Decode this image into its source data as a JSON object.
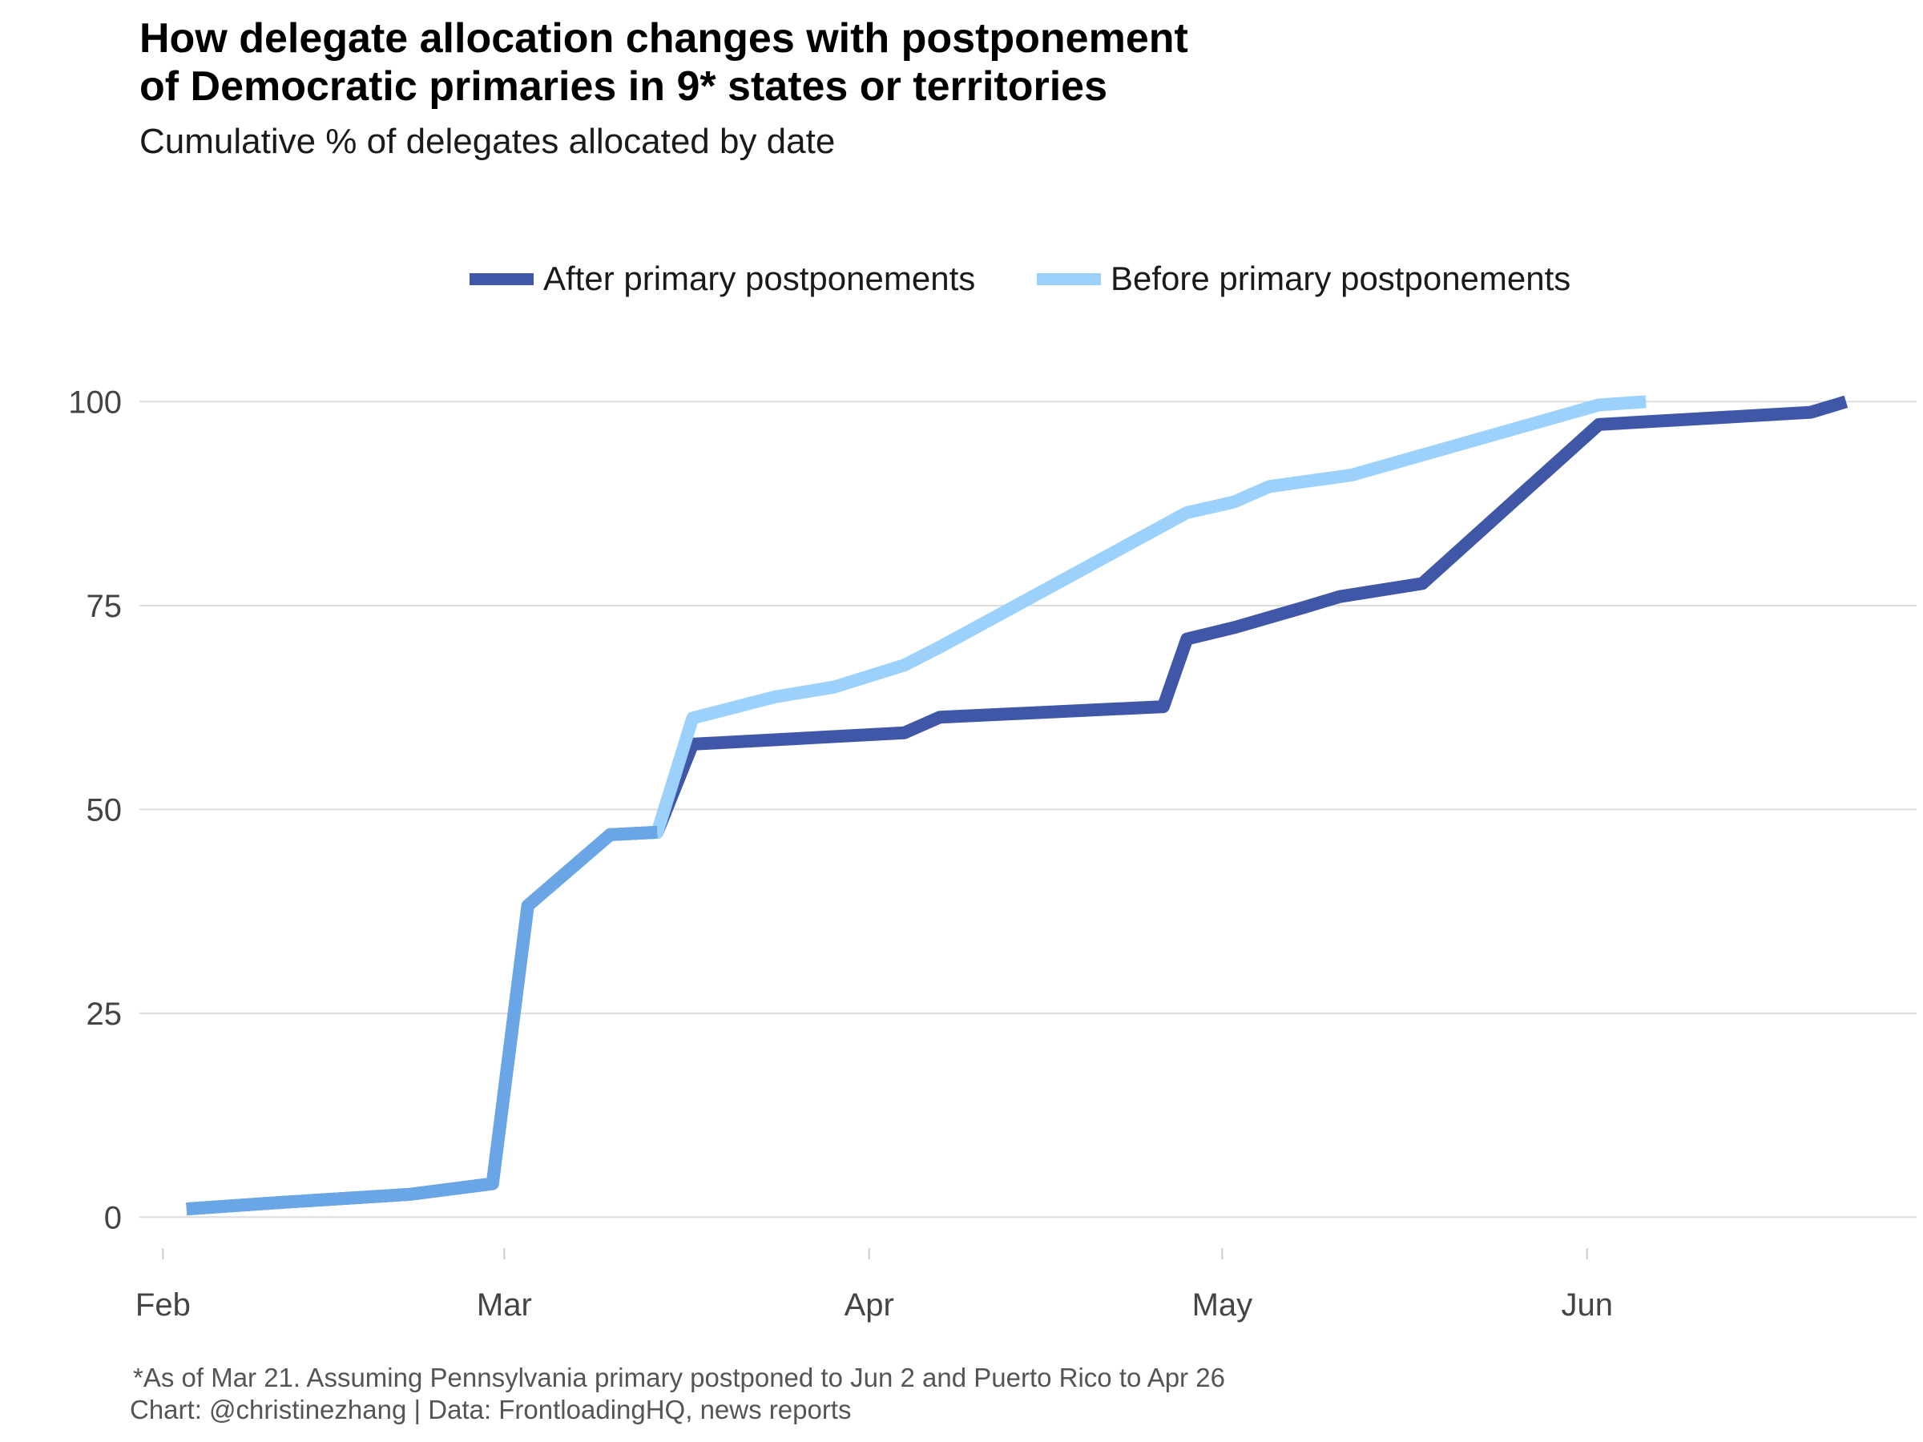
{
  "title_lines": [
    "How delegate allocation changes with postponement",
    "of Democratic primaries in 9* states or territories"
  ],
  "subtitle": "Cumulative % of delegates allocated by date",
  "caption_lines": [
    "*As of Mar 21. Assuming Pennsylvania primary postponed to Jun 2 and Puerto Rico to Apr 26",
    "Chart: @christinezhang | Data: FrontloadingHQ, news reports"
  ],
  "chart_data": {
    "type": "line",
    "title": "How delegate allocation changes with postponement of Democratic primaries in 9* states or territories",
    "subtitle": "Cumulative % of delegates allocated by date",
    "xlabel": "",
    "ylabel": "",
    "x_type": "date",
    "xlim": [
      "2020-01-30",
      "2020-06-29"
    ],
    "ylim": [
      -4,
      108
    ],
    "x_ticks": [
      {
        "date": "2020-02-01",
        "label": "Feb"
      },
      {
        "date": "2020-03-01",
        "label": "Mar"
      },
      {
        "date": "2020-04-01",
        "label": "Apr"
      },
      {
        "date": "2020-05-01",
        "label": "May"
      },
      {
        "date": "2020-06-01",
        "label": "Jun"
      }
    ],
    "y_ticks": [
      0,
      25,
      50,
      75,
      100
    ],
    "grid": {
      "horizontal": true,
      "vertical": false
    },
    "legend_position": "top",
    "series": [
      {
        "name": "After primary postponements",
        "color": "#3f57a6",
        "points": [
          {
            "x": "2020-02-03",
            "y": 1.0
          },
          {
            "x": "2020-02-11",
            "y": 1.8
          },
          {
            "x": "2020-02-22",
            "y": 2.8
          },
          {
            "x": "2020-02-29",
            "y": 4.1
          },
          {
            "x": "2020-03-03",
            "y": 38.2
          },
          {
            "x": "2020-03-10",
            "y": 46.9
          },
          {
            "x": "2020-03-14",
            "y": 47.2
          },
          {
            "x": "2020-03-17",
            "y": 58.0
          },
          {
            "x": "2020-04-04",
            "y": 59.4
          },
          {
            "x": "2020-04-07",
            "y": 61.3
          },
          {
            "x": "2020-04-26",
            "y": 62.6
          },
          {
            "x": "2020-04-28",
            "y": 70.9
          },
          {
            "x": "2020-05-02",
            "y": 72.3
          },
          {
            "x": "2020-05-08",
            "y": 74.8
          },
          {
            "x": "2020-05-11",
            "y": 76.1
          },
          {
            "x": "2020-05-18",
            "y": 77.7
          },
          {
            "x": "2020-06-02",
            "y": 97.2
          },
          {
            "x": "2020-06-20",
            "y": 98.7
          },
          {
            "x": "2020-06-23",
            "y": 100.0
          }
        ]
      },
      {
        "name": "Before primary postponements",
        "color": "#9bd1fa",
        "points": [
          {
            "x": "2020-02-03",
            "y": 1.0
          },
          {
            "x": "2020-02-11",
            "y": 1.8
          },
          {
            "x": "2020-02-22",
            "y": 2.8
          },
          {
            "x": "2020-02-29",
            "y": 4.1
          },
          {
            "x": "2020-03-03",
            "y": 38.2
          },
          {
            "x": "2020-03-10",
            "y": 46.9
          },
          {
            "x": "2020-03-14",
            "y": 47.2
          },
          {
            "x": "2020-03-17",
            "y": 61.2
          },
          {
            "x": "2020-03-24",
            "y": 63.8
          },
          {
            "x": "2020-03-29",
            "y": 65.0
          },
          {
            "x": "2020-04-04",
            "y": 67.7
          },
          {
            "x": "2020-04-07",
            "y": 69.9
          },
          {
            "x": "2020-04-28",
            "y": 86.4
          },
          {
            "x": "2020-05-02",
            "y": 87.7
          },
          {
            "x": "2020-05-05",
            "y": 89.6
          },
          {
            "x": "2020-05-12",
            "y": 91.0
          },
          {
            "x": "2020-06-02",
            "y": 99.6
          },
          {
            "x": "2020-06-06",
            "y": 100.0
          }
        ]
      }
    ],
    "shared_segment": {
      "description": "portion where both series coincide",
      "color": "#6aa6e6",
      "until": "2020-03-14"
    }
  }
}
